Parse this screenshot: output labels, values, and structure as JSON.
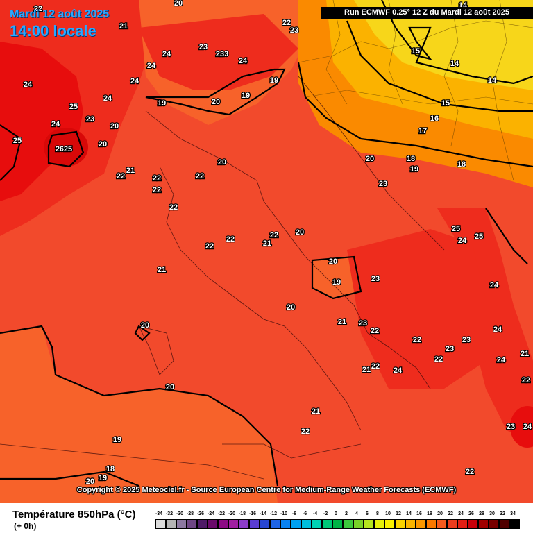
{
  "header": {
    "date": "Mardi 12 août 2025",
    "time": "14:00 locale",
    "run": "Run ECMWF 0.25° 12 Z du Mardi 12 août 2025"
  },
  "footer": {
    "copyright": "Copyright © 2025 Meteociel.fr - Source European Centre for Medium-Range Weather Forecasts (ECMWF)",
    "title": "Température 850hPa (°C)",
    "offset": "(+ 0h)"
  },
  "colors": {
    "temp_14": "#f7d61a",
    "temp_16": "#fbb200",
    "temp_18": "#fa8a00",
    "temp_20": "#f7622a",
    "temp_22": "#f24a2c",
    "temp_24": "#ee2c1d",
    "temp_26": "#e70d0d",
    "contour": "#000000"
  },
  "scale": {
    "ticks": [
      "-34",
      "-32",
      "-30",
      "-28",
      "-26",
      "-24",
      "-22",
      "-20",
      "-18",
      "-16",
      "-14",
      "-12",
      "-10",
      "-8",
      "-6",
      "-4",
      "-2",
      "0",
      "2",
      "4",
      "6",
      "8",
      "10",
      "12",
      "14",
      "16",
      "18",
      "20",
      "22",
      "24",
      "26",
      "28",
      "30",
      "32",
      "34"
    ],
    "swatch_colors": [
      "#dcdcdc",
      "#b4b4b4",
      "#8c78a0",
      "#6e4684",
      "#4e1a66",
      "#6a0a6a",
      "#8c0a84",
      "#a01ea0",
      "#8c3cc8",
      "#5a3cd2",
      "#2846d2",
      "#1e64e6",
      "#0a82f0",
      "#00a0f0",
      "#00bedc",
      "#00d2b4",
      "#00c878",
      "#00b446",
      "#3cc83c",
      "#78d228",
      "#b4e61e",
      "#e6f00a",
      "#faf000",
      "#fad200",
      "#fab400",
      "#fa9600",
      "#fa7800",
      "#f55a1e",
      "#eb3c1e",
      "#e11e14",
      "#c8000a",
      "#a00000",
      "#780000",
      "#500000",
      "#000000"
    ]
  },
  "map_labels": [
    {
      "v": "22"
    },
    {
      "v": "20"
    },
    {
      "v": "21"
    },
    {
      "v": "24"
    },
    {
      "v": "24"
    },
    {
      "v": "23"
    },
    {
      "v": "23"
    },
    {
      "v": "23"
    },
    {
      "v": "24"
    },
    {
      "v": "22"
    },
    {
      "v": "23"
    },
    {
      "v": "24"
    },
    {
      "v": "19"
    },
    {
      "v": "24"
    },
    {
      "v": "20"
    },
    {
      "v": "19"
    },
    {
      "v": "19"
    },
    {
      "v": "25"
    },
    {
      "v": "24"
    },
    {
      "v": "23"
    },
    {
      "v": "20"
    },
    {
      "v": "24"
    },
    {
      "v": "25"
    },
    {
      "v": "26"
    },
    {
      "v": "25"
    },
    {
      "v": "20"
    },
    {
      "v": "22"
    },
    {
      "v": "21"
    },
    {
      "v": "22"
    },
    {
      "v": "22"
    },
    {
      "v": "22"
    },
    {
      "v": "20"
    },
    {
      "v": "22"
    },
    {
      "v": "22"
    },
    {
      "v": "22"
    },
    {
      "v": "21"
    },
    {
      "v": "22"
    },
    {
      "v": "20"
    },
    {
      "v": "21"
    },
    {
      "v": "20"
    },
    {
      "v": "19"
    },
    {
      "v": "23"
    },
    {
      "v": "20"
    },
    {
      "v": "20"
    },
    {
      "v": "21"
    },
    {
      "v": "23"
    },
    {
      "v": "22"
    },
    {
      "v": "22"
    },
    {
      "v": "23"
    },
    {
      "v": "23"
    },
    {
      "v": "21"
    },
    {
      "v": "22"
    },
    {
      "v": "24"
    },
    {
      "v": "22"
    },
    {
      "v": "20"
    },
    {
      "v": "21"
    },
    {
      "v": "22"
    },
    {
      "v": "19"
    },
    {
      "v": "18"
    },
    {
      "v": "19"
    },
    {
      "v": "20"
    },
    {
      "v": "14"
    },
    {
      "v": "15"
    },
    {
      "v": "14"
    },
    {
      "v": "14"
    },
    {
      "v": "15"
    },
    {
      "v": "16"
    },
    {
      "v": "17"
    },
    {
      "v": "18"
    },
    {
      "v": "19"
    },
    {
      "v": "20"
    },
    {
      "v": "18"
    },
    {
      "v": "23"
    },
    {
      "v": "25"
    },
    {
      "v": "24"
    },
    {
      "v": "25"
    },
    {
      "v": "24"
    },
    {
      "v": "24"
    },
    {
      "v": "24"
    },
    {
      "v": "21"
    },
    {
      "v": "22"
    },
    {
      "v": "22"
    },
    {
      "v": "23"
    },
    {
      "v": "24"
    },
    {
      "v": "25"
    },
    {
      "v": "22"
    }
  ]
}
